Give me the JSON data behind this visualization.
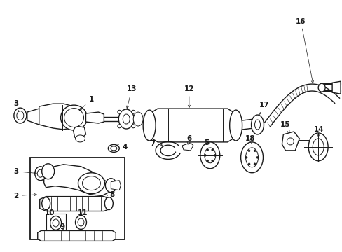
{
  "bg_color": "#ffffff",
  "line_color": "#1a1a1a",
  "fig_width": 4.89,
  "fig_height": 3.6,
  "dpi": 100,
  "parts": {
    "label_fontsize": 7.5,
    "arrow_lw": 0.5
  }
}
